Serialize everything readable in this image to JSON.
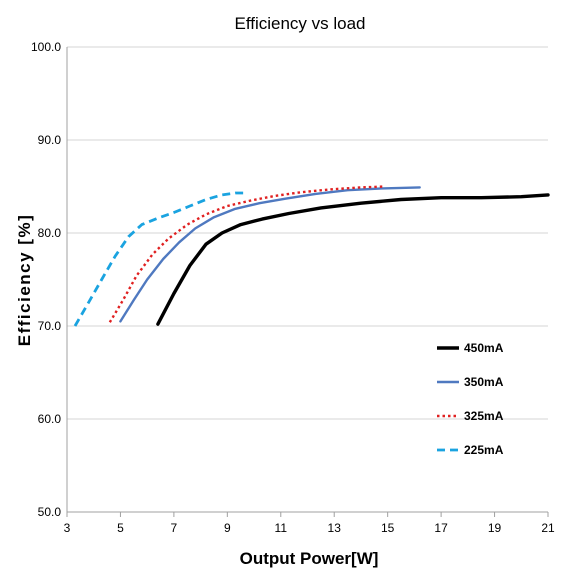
{
  "chart_data": {
    "type": "line",
    "title": "Efficiency vs load",
    "xlabel": "Output Power[W]",
    "ylabel": "Efficiency [%]",
    "xlim": [
      3,
      21
    ],
    "ylim": [
      50,
      100
    ],
    "xticks": [
      3,
      5,
      7,
      9,
      11,
      13,
      15,
      17,
      19,
      21
    ],
    "yticks": [
      50,
      60,
      70,
      80,
      90,
      100
    ],
    "ytick_labels": [
      "50.0",
      "60.0",
      "70.0",
      "80.0",
      "90.0",
      "100.0"
    ],
    "grid": "horizontal",
    "legend_position": "right",
    "series": [
      {
        "name": "450mA",
        "color": "#000000",
        "dash": "solid",
        "x": [
          6.4,
          7.0,
          7.6,
          8.2,
          8.8,
          9.5,
          10.3,
          11.3,
          12.5,
          14.0,
          15.5,
          17.0,
          18.5,
          20.0,
          21.0
        ],
        "y": [
          70.2,
          73.5,
          76.5,
          78.8,
          80.0,
          80.9,
          81.5,
          82.1,
          82.7,
          83.2,
          83.6,
          83.8,
          83.8,
          83.9,
          84.1
        ]
      },
      {
        "name": "350mA",
        "color": "#4f79c0",
        "dash": "solid",
        "x": [
          5.0,
          5.5,
          6.0,
          6.6,
          7.2,
          7.8,
          8.5,
          9.3,
          10.2,
          11.2,
          12.3,
          13.5,
          14.8,
          16.2
        ],
        "y": [
          70.5,
          72.8,
          75.0,
          77.2,
          79.0,
          80.5,
          81.7,
          82.6,
          83.2,
          83.7,
          84.2,
          84.6,
          84.8,
          84.9
        ]
      },
      {
        "name": "325mA",
        "color": "#e02020",
        "dash": "dotted",
        "x": [
          4.6,
          5.1,
          5.6,
          6.2,
          6.8,
          7.5,
          8.2,
          9.0,
          9.9,
          10.8,
          11.8,
          12.9,
          14.0,
          14.9
        ],
        "y": [
          70.4,
          72.8,
          75.4,
          77.7,
          79.4,
          80.9,
          82.0,
          82.9,
          83.5,
          84.0,
          84.4,
          84.7,
          84.9,
          85.0
        ]
      },
      {
        "name": "225mA",
        "color": "#1aa3e0",
        "dash": "dashed",
        "x": [
          3.3,
          3.8,
          4.3,
          4.8,
          5.3,
          5.8,
          6.4,
          7.0,
          7.6,
          8.2,
          8.8,
          9.3,
          9.7
        ],
        "y": [
          70.0,
          72.5,
          75.0,
          77.5,
          79.6,
          80.9,
          81.6,
          82.2,
          82.9,
          83.6,
          84.1,
          84.3,
          84.3
        ]
      }
    ]
  }
}
